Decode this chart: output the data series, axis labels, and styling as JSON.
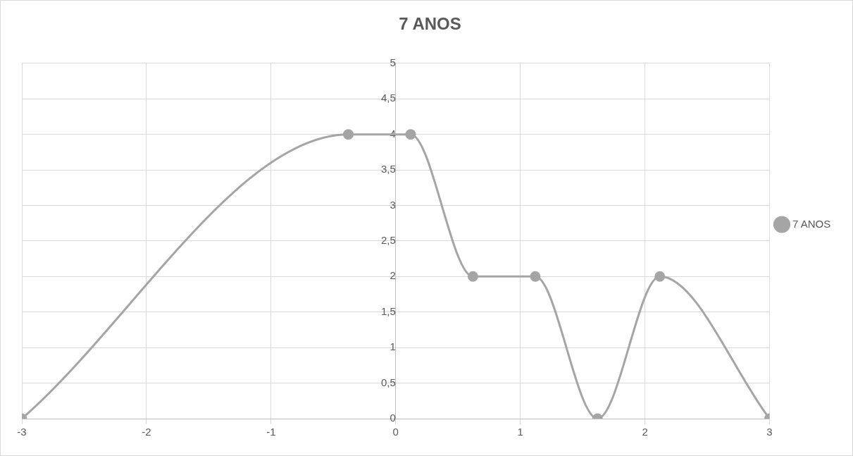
{
  "chart_data": {
    "type": "line",
    "title": "7 ANOS",
    "series": [
      {
        "name": "7 ANOS",
        "color": "#a5a5a5",
        "x": [
          -3,
          -0.38,
          0.12,
          0.62,
          1.12,
          1.62,
          2.12,
          3
        ],
        "values": [
          0,
          4,
          4,
          2,
          2,
          0,
          2,
          0
        ]
      }
    ],
    "xlim": [
      -3,
      3
    ],
    "xticks": [
      -3,
      -2,
      -1,
      0,
      1,
      2,
      3
    ],
    "ylim": [
      0,
      5
    ],
    "yticks": [
      0,
      {
        "value": 0.5,
        "label": "0,5"
      },
      1,
      {
        "value": 1.5,
        "label": "1,5"
      },
      2,
      {
        "value": 2.5,
        "label": "2,5"
      },
      3,
      {
        "value": 3.5,
        "label": "3,5"
      },
      4,
      {
        "value": 4.5,
        "label": "4,5"
      },
      5
    ],
    "grid": true,
    "legend": "right",
    "marker": "circle",
    "line_style": "solid"
  }
}
